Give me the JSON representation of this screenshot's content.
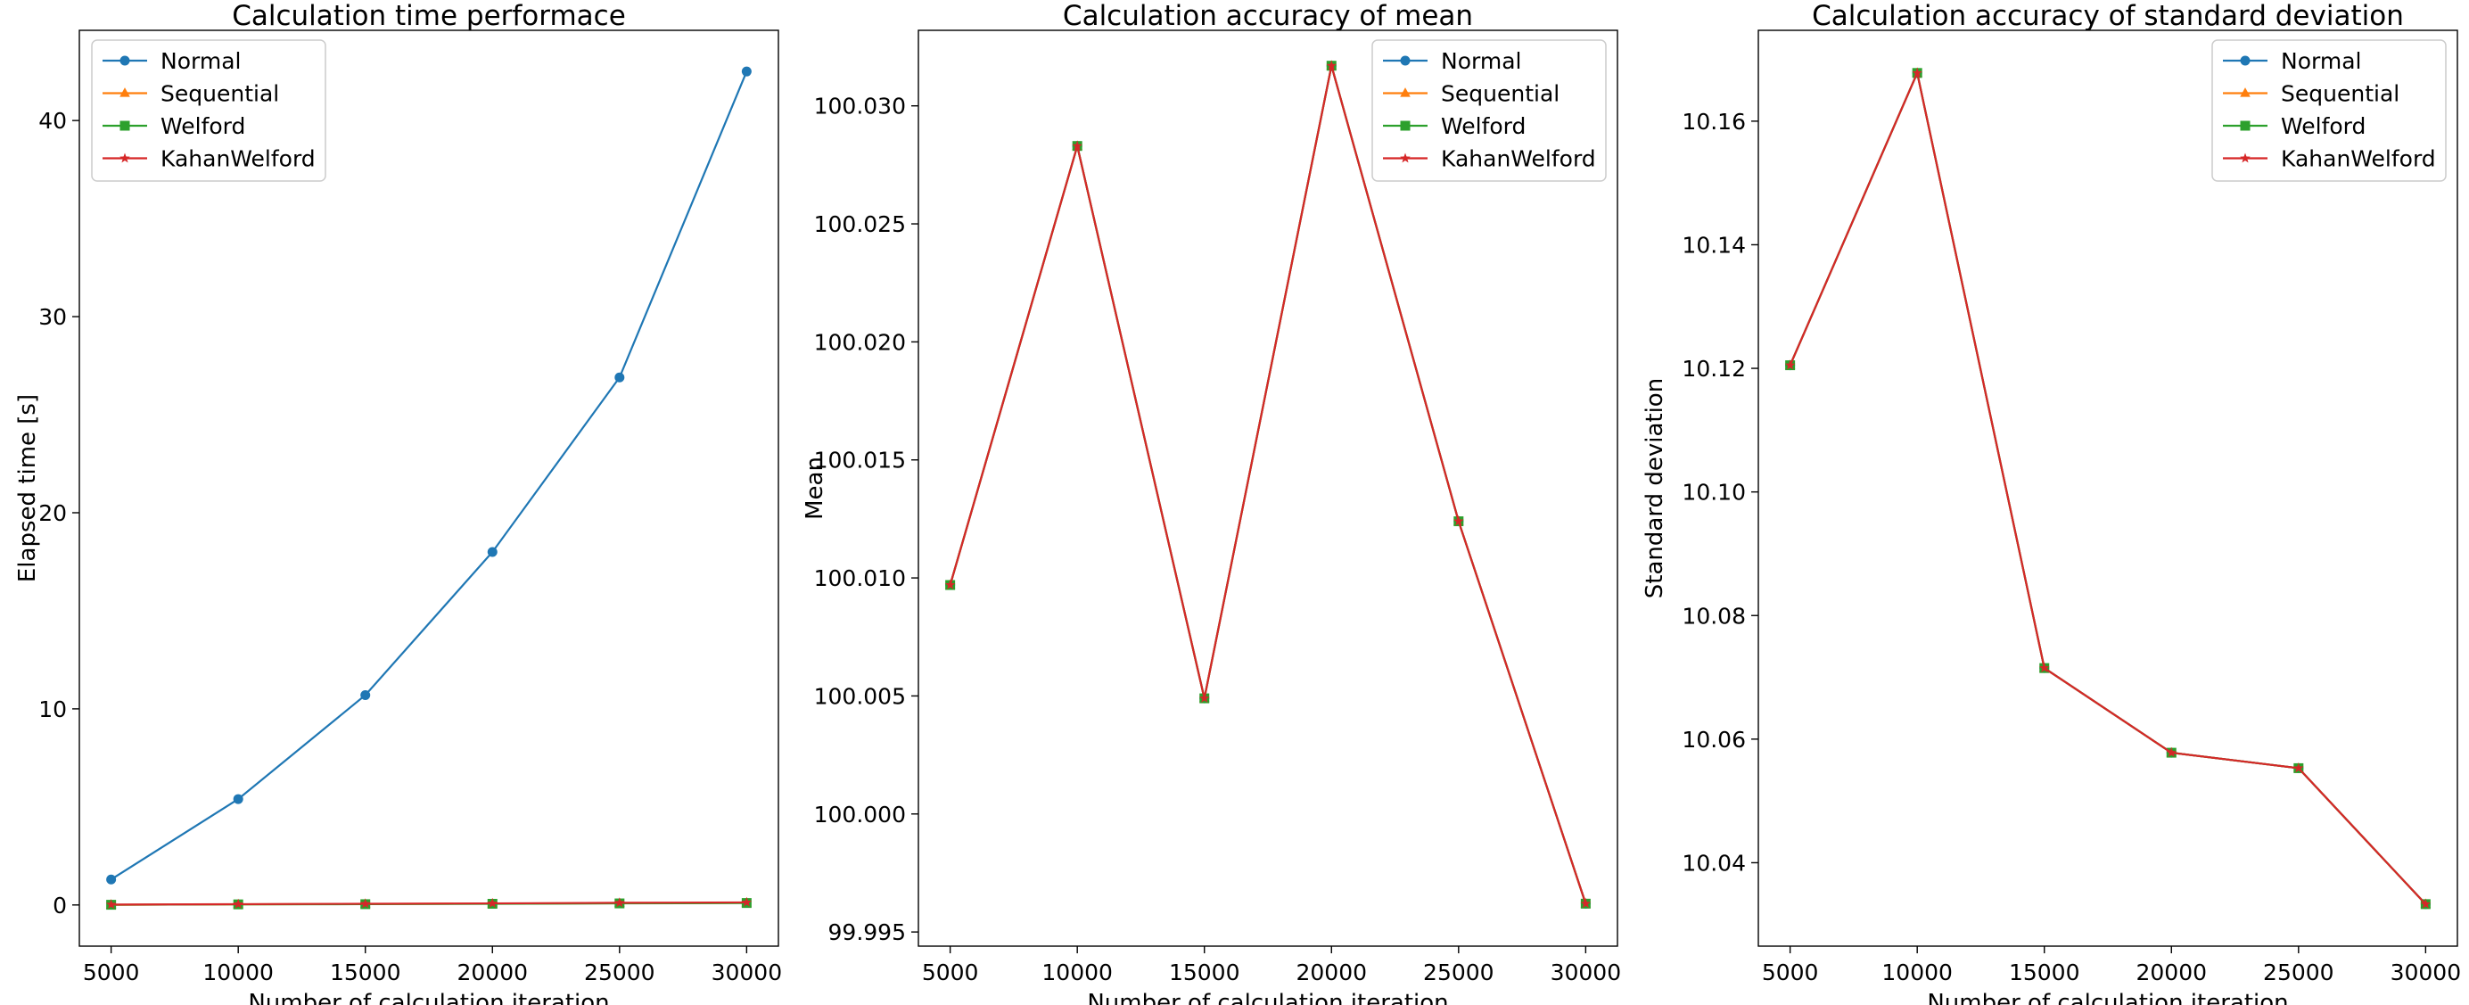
{
  "chart_data": [
    {
      "type": "line",
      "title": "Calculation time performace",
      "xlabel": "Number of calculation iteration",
      "ylabel": "Elapsed time [s]",
      "x": [
        5000,
        10000,
        15000,
        20000,
        25000,
        30000
      ],
      "xticks": [
        5000,
        10000,
        15000,
        20000,
        25000,
        30000
      ],
      "xlim": [
        3750,
        31250
      ],
      "yticks": [
        0,
        10,
        20,
        30,
        40
      ],
      "ytick_decimals": 0,
      "ylim": [
        -2.1,
        44.6
      ],
      "legend_position": "upper-left",
      "grid": false,
      "series": [
        {
          "name": "Normal",
          "color": "#1f77b4",
          "marker": "circle",
          "values": [
            1.3,
            5.4,
            10.7,
            18.0,
            26.9,
            42.5
          ]
        },
        {
          "name": "Sequential",
          "color": "#ff7f0e",
          "marker": "triangle",
          "values": [
            0.01,
            0.03,
            0.05,
            0.07,
            0.09,
            0.11
          ]
        },
        {
          "name": "Welford",
          "color": "#2ca02c",
          "marker": "square",
          "values": [
            0.01,
            0.03,
            0.04,
            0.06,
            0.08,
            0.1
          ]
        },
        {
          "name": "KahanWelford",
          "color": "#d62728",
          "marker": "star",
          "values": [
            0.02,
            0.04,
            0.06,
            0.08,
            0.11,
            0.13
          ]
        }
      ]
    },
    {
      "type": "line",
      "title": "Calculation accuracy of mean",
      "xlabel": "Number of calculation iteration",
      "ylabel": "Mean",
      "x": [
        5000,
        10000,
        15000,
        20000,
        25000,
        30000
      ],
      "xticks": [
        5000,
        10000,
        15000,
        20000,
        25000,
        30000
      ],
      "xlim": [
        3750,
        31250
      ],
      "yticks": [
        99.995,
        100.0,
        100.005,
        100.01,
        100.015,
        100.02,
        100.025,
        100.03
      ],
      "ytick_decimals": 3,
      "ylim": [
        99.9944,
        100.0332
      ],
      "legend_position": "upper-right",
      "grid": false,
      "series": [
        {
          "name": "Normal",
          "color": "#1f77b4",
          "marker": "circle",
          "values": [
            100.0097,
            100.0283,
            100.0049,
            100.0317,
            100.0124,
            99.9962
          ]
        },
        {
          "name": "Sequential",
          "color": "#ff7f0e",
          "marker": "triangle",
          "values": [
            100.0097,
            100.0283,
            100.0049,
            100.0317,
            100.0124,
            99.9962
          ]
        },
        {
          "name": "Welford",
          "color": "#2ca02c",
          "marker": "square",
          "values": [
            100.0097,
            100.0283,
            100.0049,
            100.0317,
            100.0124,
            99.9962
          ]
        },
        {
          "name": "KahanWelford",
          "color": "#d62728",
          "marker": "star",
          "values": [
            100.0097,
            100.0283,
            100.0049,
            100.0317,
            100.0124,
            99.9962
          ]
        }
      ]
    },
    {
      "type": "line",
      "title": "Calculation accuracy of standard deviation",
      "xlabel": "Number of calculation iteration",
      "ylabel": "Standard deviation",
      "x": [
        5000,
        10000,
        15000,
        20000,
        25000,
        30000
      ],
      "xticks": [
        5000,
        10000,
        15000,
        20000,
        25000,
        30000
      ],
      "xlim": [
        3750,
        31250
      ],
      "yticks": [
        10.04,
        10.06,
        10.08,
        10.1,
        10.12,
        10.14,
        10.16
      ],
      "ytick_decimals": 2,
      "ylim": [
        10.0265,
        10.1747
      ],
      "legend_position": "upper-right",
      "grid": false,
      "series": [
        {
          "name": "Normal",
          "color": "#1f77b4",
          "marker": "circle",
          "values": [
            10.1205,
            10.1678,
            10.0715,
            10.0578,
            10.0553,
            10.0333
          ]
        },
        {
          "name": "Sequential",
          "color": "#ff7f0e",
          "marker": "triangle",
          "values": [
            10.1205,
            10.1678,
            10.0715,
            10.0578,
            10.0553,
            10.0333
          ]
        },
        {
          "name": "Welford",
          "color": "#2ca02c",
          "marker": "square",
          "values": [
            10.1205,
            10.1678,
            10.0715,
            10.0578,
            10.0553,
            10.0333
          ]
        },
        {
          "name": "KahanWelford",
          "color": "#d62728",
          "marker": "star",
          "values": [
            10.1205,
            10.1678,
            10.0715,
            10.0578,
            10.0553,
            10.0333
          ]
        }
      ]
    }
  ]
}
